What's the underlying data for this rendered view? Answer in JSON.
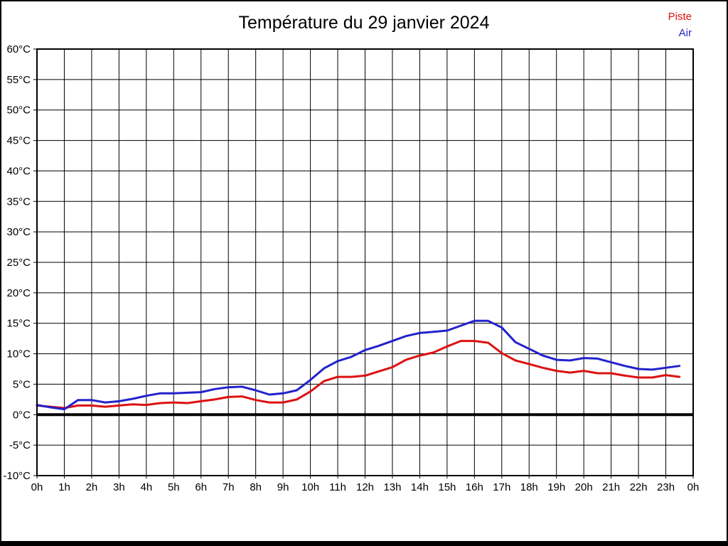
{
  "chart_data": {
    "type": "line",
    "title": "Température du 29 janvier 2024",
    "xlabel": "",
    "ylabel": "",
    "xlim": [
      0,
      24
    ],
    "ylim": [
      -10,
      60
    ],
    "grid": true,
    "zero_line": true,
    "legend_position": "top-right",
    "x": [
      0,
      0.5,
      1,
      1.5,
      2,
      2.5,
      3,
      3.5,
      4,
      4.5,
      5,
      5.5,
      6,
      6.5,
      7,
      7.5,
      8,
      8.5,
      9,
      9.5,
      10,
      10.5,
      11,
      11.5,
      12,
      12.5,
      13,
      13.5,
      14,
      14.5,
      15,
      15.5,
      16,
      16.5,
      17,
      17.5,
      18,
      18.5,
      19,
      19.5,
      20,
      20.5,
      21,
      21.5,
      22,
      22.5,
      23,
      23.5
    ],
    "series": [
      {
        "name": "Piste",
        "color": "#dd1111",
        "values": [
          1.5,
          1.3,
          1.1,
          1.5,
          1.5,
          1.3,
          1.5,
          1.7,
          1.6,
          1.9,
          2.0,
          1.9,
          2.2,
          2.5,
          2.9,
          3.0,
          2.4,
          2.0,
          2.0,
          2.5,
          3.8,
          5.5,
          6.2,
          6.2,
          6.4,
          7.1,
          7.8,
          9.0,
          9.7,
          10.2,
          11.2,
          12.1,
          12.1,
          11.8,
          10.1,
          8.9,
          8.3,
          7.7,
          7.2,
          6.9,
          7.2,
          6.8,
          6.8,
          6.4,
          6.1,
          6.1,
          6.5,
          6.2
        ]
      },
      {
        "name": "Air",
        "color": "#2222cc",
        "values": [
          1.6,
          1.2,
          0.9,
          2.4,
          2.4,
          2.0,
          2.2,
          2.6,
          3.1,
          3.5,
          3.5,
          3.6,
          3.7,
          4.2,
          4.5,
          4.6,
          4.0,
          3.3,
          3.5,
          4.0,
          5.7,
          7.6,
          8.8,
          9.5,
          10.6,
          11.3,
          12.1,
          12.9,
          13.4,
          13.6,
          13.8,
          14.6,
          15.4,
          15.4,
          14.3,
          11.9,
          10.8,
          9.7,
          9.0,
          8.9,
          9.3,
          9.2,
          8.6,
          8.0,
          7.5,
          7.4,
          7.7,
          8.0
        ]
      }
    ],
    "x_ticks": [
      {
        "value": 0,
        "label": "0h"
      },
      {
        "value": 1,
        "label": "1h"
      },
      {
        "value": 2,
        "label": "2h"
      },
      {
        "value": 3,
        "label": "3h"
      },
      {
        "value": 4,
        "label": "4h"
      },
      {
        "value": 5,
        "label": "5h"
      },
      {
        "value": 6,
        "label": "6h"
      },
      {
        "value": 7,
        "label": "7h"
      },
      {
        "value": 8,
        "label": "8h"
      },
      {
        "value": 9,
        "label": "9h"
      },
      {
        "value": 10,
        "label": "10h"
      },
      {
        "value": 11,
        "label": "11h"
      },
      {
        "value": 12,
        "label": "12h"
      },
      {
        "value": 13,
        "label": "13h"
      },
      {
        "value": 14,
        "label": "14h"
      },
      {
        "value": 15,
        "label": "15h"
      },
      {
        "value": 16,
        "label": "16h"
      },
      {
        "value": 17,
        "label": "17h"
      },
      {
        "value": 18,
        "label": "18h"
      },
      {
        "value": 19,
        "label": "19h"
      },
      {
        "value": 20,
        "label": "20h"
      },
      {
        "value": 21,
        "label": "21h"
      },
      {
        "value": 22,
        "label": "22h"
      },
      {
        "value": 23,
        "label": "23h"
      },
      {
        "value": 24,
        "label": "0h"
      }
    ],
    "y_ticks": [
      {
        "value": 60,
        "label": "60°C"
      },
      {
        "value": 55,
        "label": "55°C"
      },
      {
        "value": 50,
        "label": "50°C"
      },
      {
        "value": 45,
        "label": "45°C"
      },
      {
        "value": 40,
        "label": "40°C"
      },
      {
        "value": 35,
        "label": "35°C"
      },
      {
        "value": 30,
        "label": "30°C"
      },
      {
        "value": 25,
        "label": "25°C"
      },
      {
        "value": 20,
        "label": "20°C"
      },
      {
        "value": 15,
        "label": "15°C"
      },
      {
        "value": 10,
        "label": "10°C"
      },
      {
        "value": 5,
        "label": "5°C"
      },
      {
        "value": 0,
        "label": "0°C"
      },
      {
        "value": -5,
        "label": "-5°C"
      },
      {
        "value": -10,
        "label": "-10°C"
      }
    ]
  }
}
